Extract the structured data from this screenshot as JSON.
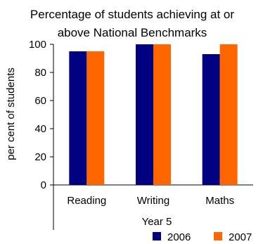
{
  "chart_data": {
    "type": "bar",
    "title_lines": [
      "Percentage of students achieving at or",
      "above National Benchmarks"
    ],
    "xlabel": "Year 5",
    "ylabel": "per cent of students",
    "categories": [
      "Reading",
      "Writing",
      "Maths"
    ],
    "ylim": [
      0,
      100
    ],
    "yticks": [
      "0",
      "20",
      "40",
      "60",
      "80",
      "100"
    ],
    "grid": false,
    "legend_position": "bottom-right",
    "series": [
      {
        "name": "2006",
        "color": "#000080",
        "values": [
          95,
          100,
          93
        ]
      },
      {
        "name": "2007",
        "color": "#ff6600",
        "values": [
          95,
          100,
          100
        ]
      }
    ]
  }
}
